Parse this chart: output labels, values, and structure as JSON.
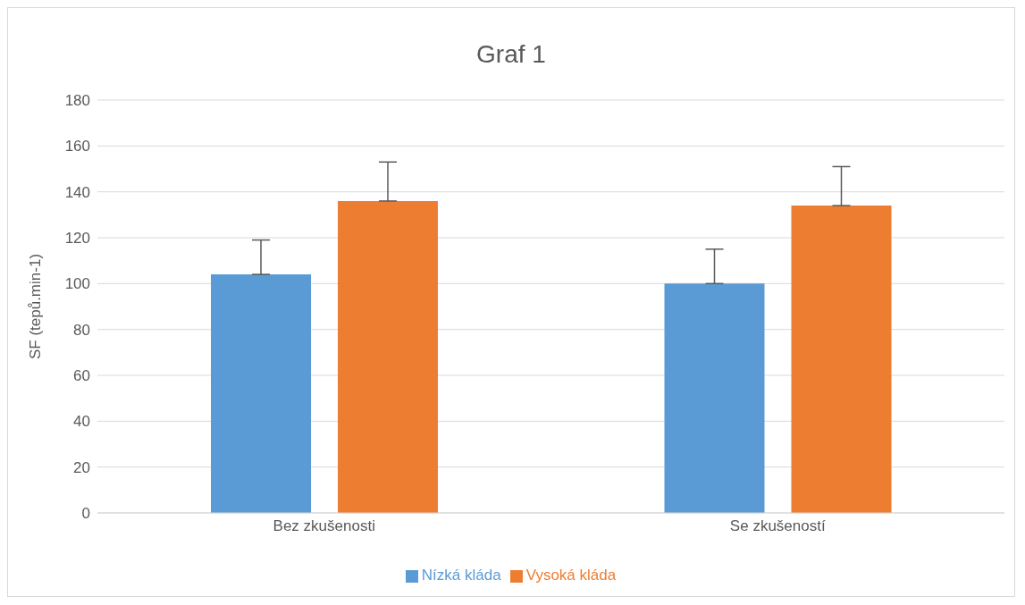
{
  "chart_data": {
    "type": "bar",
    "title": "Graf 1",
    "ylabel": "SF (tepů.min-1)",
    "categories": [
      "Bez zkušenosti",
      "Se zkušeností"
    ],
    "series": [
      {
        "name": "Nízká kláda",
        "color": "#5b9bd5",
        "values": [
          104,
          100
        ],
        "errors": [
          [
            104,
            119
          ],
          [
            100,
            115
          ]
        ]
      },
      {
        "name": "Vysoká kláda",
        "color": "#ed7d31",
        "values": [
          136,
          134
        ],
        "errors": [
          [
            136,
            153
          ],
          [
            134,
            151
          ]
        ]
      }
    ],
    "ylim": [
      0,
      180
    ],
    "yticks": [
      0,
      20,
      40,
      60,
      80,
      100,
      120,
      140,
      160,
      180
    ],
    "grid": "y",
    "legend": "bottom"
  }
}
